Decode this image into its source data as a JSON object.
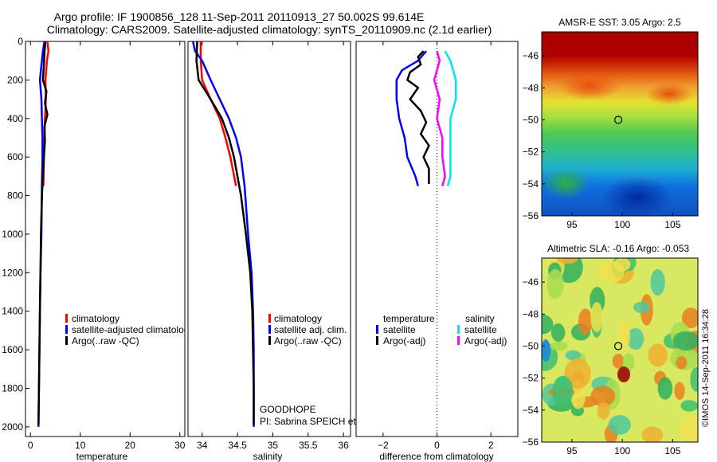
{
  "title_line1": "Argo profile: IF 1900856_128 11-Sep-2011 20110913_27 50.002S 99.614E",
  "title_line2": "Climatology: CARS2009. Satellite-adjusted climatology: synTS_20110909.nc (2.1d earlier)",
  "watermark": "©IMOS 14-Sep-2011 16:34:28",
  "colors": {
    "climatology": "#ff0000",
    "satellite": "#0000ff",
    "argo": "#000000",
    "sal_satellite": "#00e5e5",
    "sal_argo": "#ff00ff"
  },
  "chart_data": [
    {
      "type": "line",
      "id": "temperature",
      "xlabel": "temperature",
      "xlim": [
        -1,
        31
      ],
      "ylim": [
        2050,
        0
      ],
      "xticks": [
        0,
        10,
        20,
        30
      ],
      "yticks": [
        0,
        200,
        400,
        600,
        800,
        1000,
        1200,
        1400,
        1600,
        1800,
        2000
      ],
      "legend": [
        "climatology",
        "satellite-adjusted climatology",
        "Argo(..raw -QC)"
      ],
      "series": [
        {
          "name": "climatology",
          "color": "#ff0000",
          "points": [
            [
              3.4,
              0
            ],
            [
              3.6,
              50
            ],
            [
              3.3,
              100
            ],
            [
              3.0,
              200
            ],
            [
              3.1,
              300
            ],
            [
              2.9,
              400
            ],
            [
              2.8,
              500
            ],
            [
              2.7,
              600
            ],
            [
              2.6,
              750
            ]
          ]
        },
        {
          "name": "satellite-adjusted climatology",
          "color": "#0000ff",
          "points": [
            [
              2.8,
              0
            ],
            [
              2.5,
              50
            ],
            [
              2.3,
              100
            ],
            [
              1.9,
              200
            ],
            [
              2.2,
              300
            ],
            [
              2.3,
              400
            ],
            [
              2.4,
              500
            ],
            [
              2.4,
              600
            ],
            [
              2.3,
              750
            ],
            [
              2.2,
              1000
            ],
            [
              2.0,
              1200
            ],
            [
              1.9,
              1400
            ],
            [
              1.8,
              1600
            ],
            [
              1.7,
              1800
            ],
            [
              1.6,
              2000
            ]
          ]
        },
        {
          "name": "Argo(..raw -QC)",
          "color": "#000000",
          "points": [
            [
              3.0,
              0
            ],
            [
              2.8,
              60
            ],
            [
              2.7,
              120
            ],
            [
              2.5,
              200
            ],
            [
              3.2,
              260
            ],
            [
              2.9,
              320
            ],
            [
              3.4,
              380
            ],
            [
              2.8,
              440
            ],
            [
              2.9,
              520
            ],
            [
              2.7,
              600
            ],
            [
              2.5,
              700
            ],
            [
              2.3,
              800
            ],
            [
              2.1,
              1000
            ],
            [
              2.0,
              1200
            ],
            [
              1.9,
              1400
            ],
            [
              1.8,
              1600
            ],
            [
              1.7,
              1800
            ],
            [
              1.6,
              1990
            ]
          ]
        }
      ]
    },
    {
      "type": "line",
      "id": "salinity",
      "xlabel": "salinity",
      "xlim": [
        33.8,
        36.1
      ],
      "ylim": [
        2050,
        0
      ],
      "xticks": [
        34,
        34.5,
        35,
        35.5,
        36
      ],
      "legend": [
        "climatology",
        "satellite adj. clim.",
        "Argo(..raw -QC)"
      ],
      "annotations": [
        "GOODHOPE",
        "PI: Sabrina SPEICH et Michel ARHAN"
      ],
      "series": [
        {
          "name": "climatology",
          "color": "#ff0000",
          "points": [
            [
              33.98,
              0
            ],
            [
              33.98,
              100
            ],
            [
              34.0,
              200
            ],
            [
              34.12,
              300
            ],
            [
              34.25,
              400
            ],
            [
              34.33,
              500
            ],
            [
              34.4,
              600
            ],
            [
              34.48,
              750
            ]
          ]
        },
        {
          "name": "satellite adj. clim.",
          "color": "#0000ff",
          "points": [
            [
              33.87,
              0
            ],
            [
              33.9,
              50
            ],
            [
              34.0,
              100
            ],
            [
              34.12,
              200
            ],
            [
              34.25,
              300
            ],
            [
              34.38,
              400
            ],
            [
              34.48,
              500
            ],
            [
              34.55,
              600
            ],
            [
              34.6,
              750
            ],
            [
              34.65,
              1000
            ],
            [
              34.7,
              1200
            ],
            [
              34.72,
              1400
            ],
            [
              34.73,
              1600
            ],
            [
              34.73,
              1800
            ],
            [
              34.73,
              2000
            ]
          ]
        },
        {
          "name": "Argo(..raw -QC)",
          "color": "#000000",
          "points": [
            [
              33.93,
              0
            ],
            [
              33.92,
              100
            ],
            [
              33.95,
              200
            ],
            [
              34.12,
              300
            ],
            [
              34.28,
              400
            ],
            [
              34.38,
              500
            ],
            [
              34.45,
              600
            ],
            [
              34.55,
              800
            ],
            [
              34.62,
              1000
            ],
            [
              34.68,
              1200
            ],
            [
              34.71,
              1400
            ],
            [
              34.72,
              1600
            ],
            [
              34.73,
              1800
            ],
            [
              34.73,
              1990
            ]
          ]
        }
      ]
    },
    {
      "type": "line",
      "id": "difference",
      "xlabel": "difference from climatology",
      "xlim": [
        -3.0,
        3.0
      ],
      "ylim": [
        2050,
        0
      ],
      "xticks": [
        -2,
        0,
        2
      ],
      "zero_line": 0,
      "legend_titles": [
        "temperature",
        "salinity"
      ],
      "legend": [
        "satellite",
        "Argo(-adj)",
        "satellite",
        "Argo(-adj)"
      ],
      "series": [
        {
          "name": "temperature satellite",
          "color": "#0000ff",
          "points": [
            [
              -0.4,
              50
            ],
            [
              -0.7,
              100
            ],
            [
              -1.3,
              150
            ],
            [
              -1.5,
              200
            ],
            [
              -1.5,
              300
            ],
            [
              -1.4,
              400
            ],
            [
              -1.2,
              500
            ],
            [
              -1.1,
              600
            ],
            [
              -0.8,
              700
            ],
            [
              -0.7,
              750
            ]
          ]
        },
        {
          "name": "temperature Argo(-adj)",
          "color": "#000000",
          "points": [
            [
              -0.5,
              50
            ],
            [
              -0.7,
              80
            ],
            [
              -0.6,
              120
            ],
            [
              -1.0,
              160
            ],
            [
              -1.1,
              200
            ],
            [
              -0.7,
              240
            ],
            [
              -1.0,
              300
            ],
            [
              -0.6,
              360
            ],
            [
              -0.4,
              420
            ],
            [
              -0.6,
              480
            ],
            [
              -0.3,
              540
            ],
            [
              -0.5,
              600
            ],
            [
              -0.3,
              660
            ],
            [
              -0.3,
              740
            ]
          ]
        },
        {
          "name": "salinity satellite",
          "color": "#00e5e5",
          "points": [
            [
              0.3,
              50
            ],
            [
              0.5,
              100
            ],
            [
              0.6,
              150
            ],
            [
              0.7,
              200
            ],
            [
              0.7,
              300
            ],
            [
              0.5,
              400
            ],
            [
              0.5,
              500
            ],
            [
              0.5,
              600
            ],
            [
              0.5,
              700
            ],
            [
              0.4,
              750
            ]
          ]
        },
        {
          "name": "salinity Argo(-adj)",
          "color": "#ff00ff",
          "points": [
            [
              0.0,
              50
            ],
            [
              0.1,
              100
            ],
            [
              0.0,
              150
            ],
            [
              -0.1,
              200
            ],
            [
              0.0,
              250
            ],
            [
              0.1,
              300
            ],
            [
              0.0,
              400
            ],
            [
              0.2,
              500
            ],
            [
              0.2,
              600
            ],
            [
              0.3,
              700
            ],
            [
              0.2,
              750
            ]
          ]
        }
      ]
    },
    {
      "type": "heatmap",
      "id": "sst",
      "title": "AMSR-E SST: 3.05 Argo: 2.5",
      "xlim": [
        92,
        107.5
      ],
      "ylim": [
        -56,
        -44.5
      ],
      "xticks": [
        95,
        100,
        105
      ],
      "yticks": [
        -46,
        -48,
        -50,
        -52,
        -54,
        -56
      ],
      "marker": [
        99.6,
        -50.0
      ]
    },
    {
      "type": "heatmap",
      "id": "sla",
      "title": "Altimetric SLA: -0.16 Argo: -0.053",
      "xlim": [
        92,
        107.5
      ],
      "ylim": [
        -56,
        -44.5
      ],
      "xticks": [
        95,
        100,
        105
      ],
      "yticks": [
        -46,
        -48,
        -50,
        -52,
        -54,
        -56
      ],
      "marker": [
        99.6,
        -50.0
      ]
    }
  ]
}
